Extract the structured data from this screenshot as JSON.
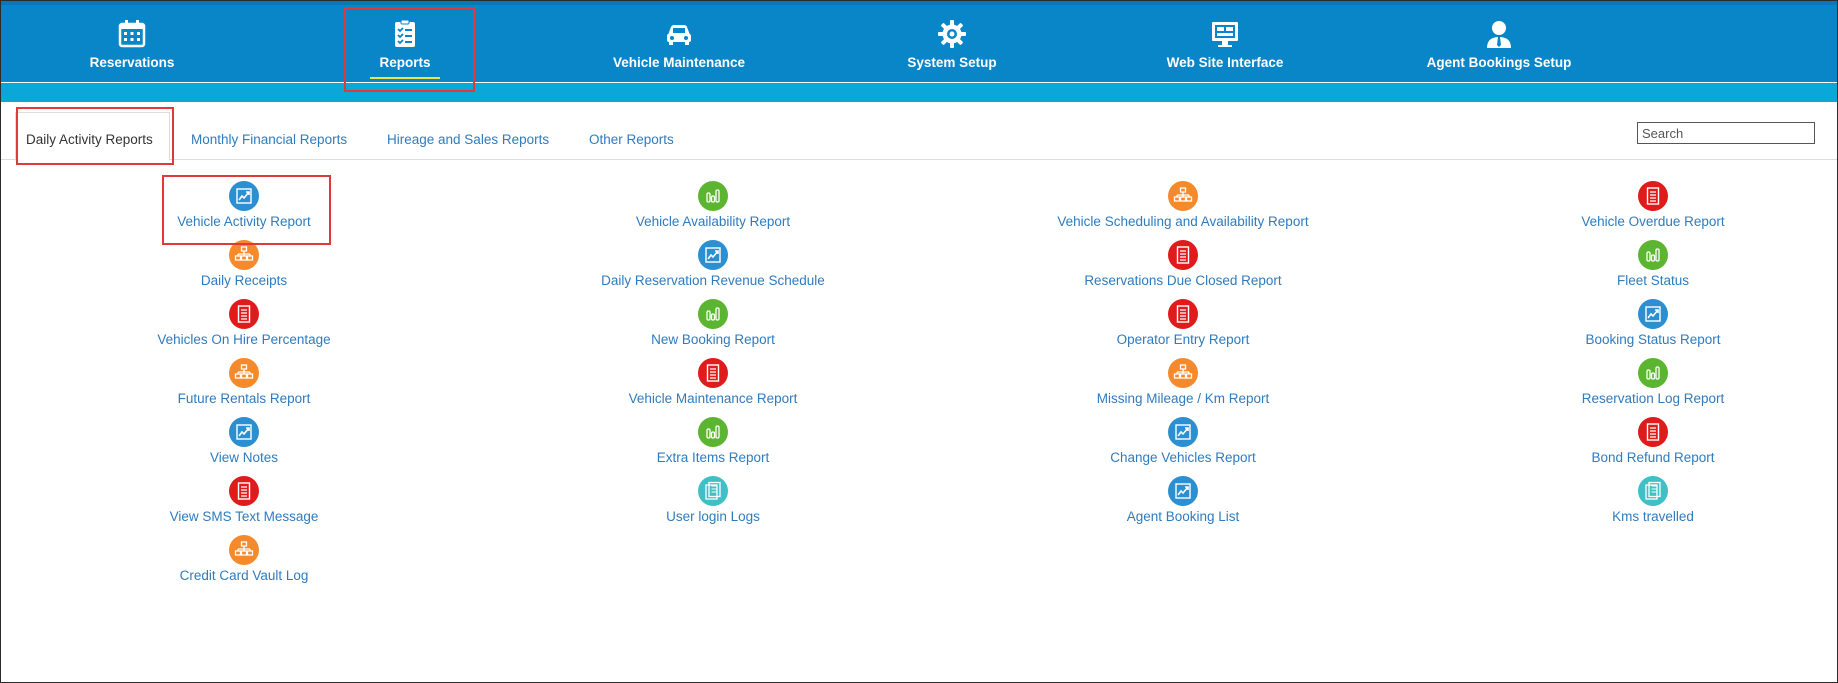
{
  "nav": {
    "items": [
      {
        "label": "Reservations",
        "icon": "calendar-icon"
      },
      {
        "label": "Reports",
        "icon": "clipboard-checklist-icon"
      },
      {
        "label": "Vehicle Maintenance",
        "icon": "car-icon"
      },
      {
        "label": "System Setup",
        "icon": "gear-icon"
      },
      {
        "label": "Web Site Interface",
        "icon": "monitor-icon"
      },
      {
        "label": "Agent Bookings Setup",
        "icon": "agent-user-icon"
      }
    ],
    "active": "Reports"
  },
  "tabs": [
    {
      "label": "Daily Activity Reports",
      "active": true
    },
    {
      "label": "Monthly Financial Reports",
      "active": false
    },
    {
      "label": "Hireage and Sales Reports",
      "active": false
    },
    {
      "label": "Other Reports",
      "active": false
    }
  ],
  "search": {
    "placeholder": "Search",
    "value": ""
  },
  "colors": {
    "nav_bg": "#0886c8",
    "sub_bar": "#0aa7d8",
    "link": "#2f7bbf",
    "highlight_box": "#e0393a",
    "icon_blue": "#2b8fd1",
    "icon_green": "#5cb531",
    "icon_orange": "#f58a2c",
    "icon_red": "#e01b1b",
    "icon_teal": "#3fbfc6"
  },
  "reports": {
    "columns": [
      [
        {
          "label": "Vehicle Activity Report",
          "icon": "trend-chart-icon",
          "color": "blue"
        },
        {
          "label": "Daily Receipts",
          "icon": "hierarchy-icon",
          "color": "orange"
        },
        {
          "label": "Vehicles On Hire Percentage",
          "icon": "document-icon",
          "color": "red"
        },
        {
          "label": "Future Rentals Report",
          "icon": "hierarchy-icon",
          "color": "orange"
        },
        {
          "label": "View Notes",
          "icon": "trend-chart-icon",
          "color": "blue"
        },
        {
          "label": "View SMS Text Message",
          "icon": "document-icon",
          "color": "red"
        },
        {
          "label": "Credit Card Vault Log",
          "icon": "hierarchy-icon",
          "color": "orange"
        }
      ],
      [
        {
          "label": "Vehicle Availability Report",
          "icon": "bar-chart-icon",
          "color": "green"
        },
        {
          "label": "Daily Reservation Revenue Schedule",
          "icon": "trend-chart-icon",
          "color": "blue"
        },
        {
          "label": "New Booking Report",
          "icon": "bar-chart-icon",
          "color": "green"
        },
        {
          "label": "Vehicle Maintenance Report",
          "icon": "document-icon",
          "color": "red"
        },
        {
          "label": "Extra Items Report",
          "icon": "bar-chart-icon",
          "color": "green"
        },
        {
          "label": "User login Logs",
          "icon": "log-pages-icon",
          "color": "teal"
        }
      ],
      [
        {
          "label": "Vehicle Scheduling and Availability Report",
          "icon": "hierarchy-icon",
          "color": "orange"
        },
        {
          "label": "Reservations Due Closed Report",
          "icon": "document-icon",
          "color": "red"
        },
        {
          "label": "Operator Entry Report",
          "icon": "document-icon",
          "color": "red"
        },
        {
          "label": "Missing Mileage / Km Report",
          "icon": "hierarchy-icon",
          "color": "orange"
        },
        {
          "label": "Change Vehicles Report",
          "icon": "trend-chart-icon",
          "color": "blue"
        },
        {
          "label": "Agent Booking List",
          "icon": "trend-chart-icon",
          "color": "blue"
        }
      ],
      [
        {
          "label": "Vehicle Overdue Report",
          "icon": "document-icon",
          "color": "red"
        },
        {
          "label": "Fleet Status",
          "icon": "bar-chart-icon",
          "color": "green"
        },
        {
          "label": "Booking Status Report",
          "icon": "trend-chart-icon",
          "color": "blue"
        },
        {
          "label": "Reservation Log Report",
          "icon": "bar-chart-icon",
          "color": "green"
        },
        {
          "label": "Bond Refund Report",
          "icon": "document-icon",
          "color": "red"
        },
        {
          "label": "Kms travelled",
          "icon": "log-pages-icon",
          "color": "teal"
        }
      ]
    ]
  }
}
